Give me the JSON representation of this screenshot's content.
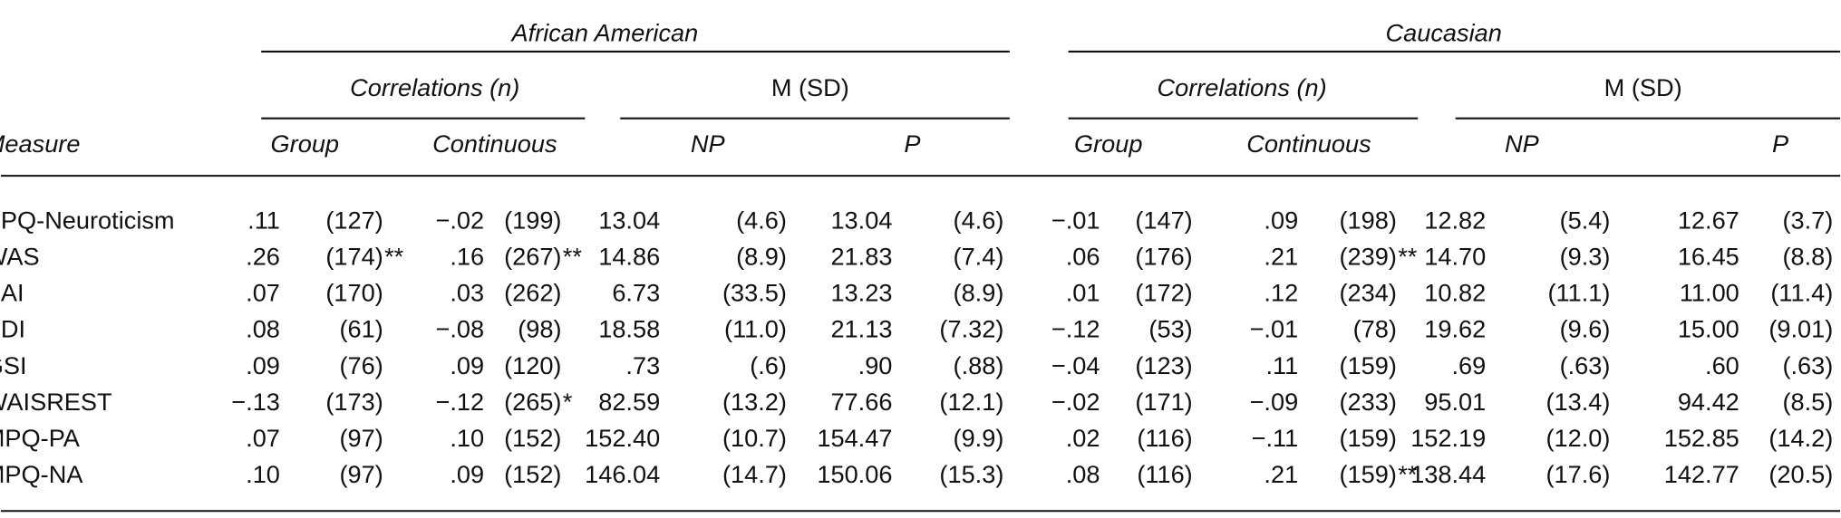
{
  "table": {
    "groups": [
      "African American",
      "Caucasian"
    ],
    "subgroups": [
      "Correlations (n)",
      "M (SD)",
      "Correlations (n)",
      "M (SD)"
    ],
    "columns": [
      "Measure",
      "Group",
      "Continuous",
      "NP",
      "P",
      "Group",
      "Continuous",
      "NP",
      "P"
    ],
    "rows": [
      {
        "measure": "EPQ-Neuroticism",
        "cells": [
          ".11",
          "(127)",
          "−.02",
          "(199)",
          "13.04",
          "(4.6)",
          "13.04",
          "(4.6)",
          "−.01",
          "(147)",
          ".09",
          "(198)",
          "12.82",
          "(5.4)",
          "12.67",
          "(3.7)"
        ]
      },
      {
        "measure": "WAS",
        "cells": [
          ".26",
          "(174)",
          ".16",
          "(267)",
          "14.86",
          "(8.9)",
          "21.83",
          "(7.4)",
          ".06",
          "(176)",
          ".21",
          "(239)",
          "14.70",
          "(9.3)",
          "16.45",
          "(8.8)"
        ],
        "sig": {
          "1": "**",
          "3": "**",
          "11": "**"
        }
      },
      {
        "measure": "BAI",
        "cells": [
          ".07",
          "(170)",
          ".03",
          "(262)",
          "6.73",
          "(33.5)",
          "13.23",
          "(8.9)",
          ".01",
          "(172)",
          ".12",
          "(234)",
          "10.82",
          "(11.1)",
          "11.00",
          "(11.4)"
        ]
      },
      {
        "measure": "BDI",
        "cells": [
          ".08",
          "(61)",
          "−.08",
          "(98)",
          "18.58",
          "(11.0)",
          "21.13",
          "(7.32)",
          "−.12",
          "(53)",
          "−.01",
          "(78)",
          "19.62",
          "(9.6)",
          "15.00",
          "(9.01)"
        ]
      },
      {
        "measure": "GSI",
        "cells": [
          ".09",
          "(76)",
          ".09",
          "(120)",
          ".73",
          "(.6)",
          ".90",
          "(.88)",
          "−.04",
          "(123)",
          ".11",
          "(159)",
          ".69",
          "(.63)",
          ".60",
          "(.63)"
        ]
      },
      {
        "measure": "WAISREST",
        "cells": [
          "−.13",
          "(173)",
          "−.12",
          "(265)",
          "82.59",
          "(13.2)",
          "77.66",
          "(12.1)",
          "−.02",
          "(171)",
          "−.09",
          "(233)",
          "95.01",
          "(13.4)",
          "94.42",
          "(8.5)"
        ],
        "sig": {
          "3": "*"
        }
      },
      {
        "measure": "MPQ-PA",
        "cells": [
          ".07",
          "(97)",
          ".10",
          "(152)",
          "152.40",
          "(10.7)",
          "154.47",
          "(9.9)",
          ".02",
          "(116)",
          "−.11",
          "(159)",
          "152.19",
          "(12.0)",
          "152.85",
          "(14.2)"
        ]
      },
      {
        "measure": "MPQ-NA",
        "cells": [
          ".10",
          "(97)",
          ".09",
          "(152)",
          "146.04",
          "(14.7)",
          "150.06",
          "(15.3)",
          ".08",
          "(116)",
          ".21",
          "(159)",
          "138.44",
          "(17.6)",
          "142.77",
          "(20.5)"
        ],
        "sig": {
          "11": "**"
        }
      }
    ]
  }
}
